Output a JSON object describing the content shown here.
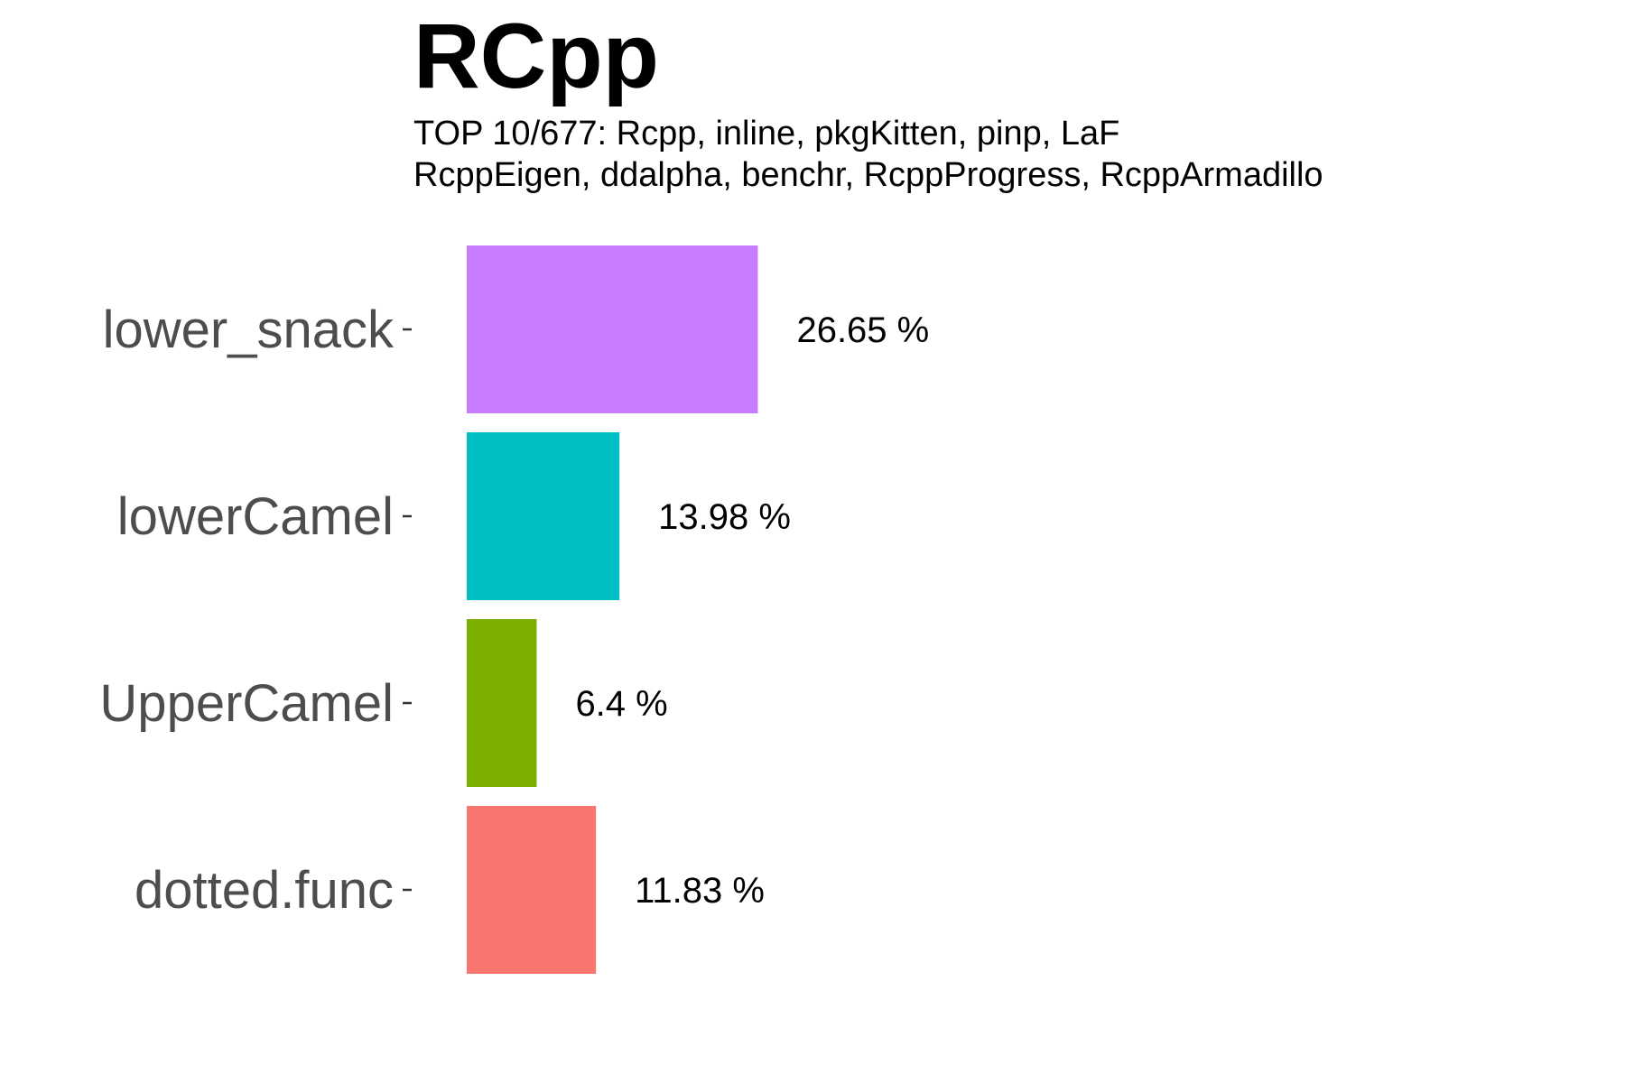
{
  "chart_data": {
    "type": "bar",
    "orientation": "horizontal",
    "title": "RCpp",
    "subtitle": [
      "TOP 10/677: Rcpp, inline, pkgKitten, pinp, LaF",
      "RcppEigen, ddalpha, benchr, RcppProgress, RcppArmadillo"
    ],
    "categories": [
      "lower_snack",
      "lowerCamel",
      "UpperCamel",
      "dotted.func"
    ],
    "values": [
      26.65,
      13.98,
      6.4,
      11.83
    ],
    "value_labels": [
      "26.65 %",
      "13.98 %",
      "6.4 %",
      "11.83 %"
    ],
    "colors": [
      "#C77CFF",
      "#00BFC4",
      "#7CAE00",
      "#F8766D"
    ],
    "xlabel": "",
    "ylabel": "",
    "xlim": [
      0,
      100
    ],
    "grid": false,
    "legend": "none"
  }
}
